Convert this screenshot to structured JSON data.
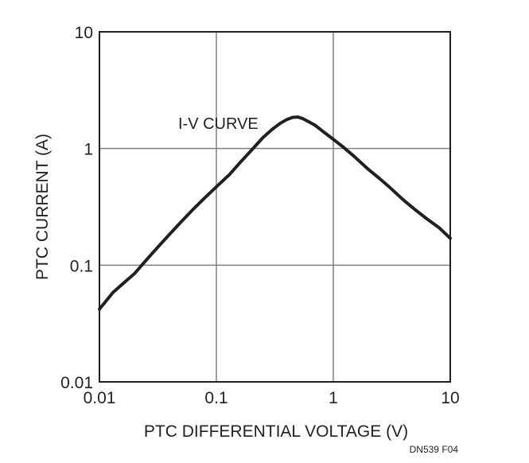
{
  "chart_data": {
    "type": "line",
    "xlabel": "PTC DIFFERENTIAL VOLTAGE (V)",
    "ylabel": "PTC CURRENT (A)",
    "x_scale": "log",
    "y_scale": "log",
    "xlim": [
      0.01,
      10
    ],
    "ylim": [
      0.01,
      10
    ],
    "x_ticks": [
      0.01,
      0.1,
      1,
      10
    ],
    "x_tick_labels": [
      "0.01",
      "0.1",
      "1",
      "10"
    ],
    "y_ticks": [
      0.01,
      0.1,
      1,
      10
    ],
    "y_tick_labels": [
      "0.01",
      "0.1",
      "1",
      "10"
    ],
    "grid": true,
    "annotation": "I-V CURVE",
    "figure_id": "DN539 F04",
    "colors": {
      "curve": "#231f20",
      "grid": "#808080",
      "axes": "#231f20"
    },
    "series": [
      {
        "x": [
          0.01,
          0.013,
          0.016,
          0.02,
          0.025,
          0.032,
          0.04,
          0.05,
          0.063,
          0.08,
          0.1,
          0.13,
          0.16,
          0.2,
          0.25,
          0.3,
          0.35,
          0.4,
          0.45,
          0.5,
          0.55,
          0.6,
          0.7,
          0.8,
          0.9,
          1.0,
          1.2,
          1.5,
          2.0,
          2.5,
          3.0,
          4.0,
          5.0,
          6.3,
          8.0,
          10.0
        ],
        "y": [
          0.042,
          0.058,
          0.07,
          0.085,
          0.11,
          0.145,
          0.185,
          0.235,
          0.3,
          0.38,
          0.47,
          0.6,
          0.76,
          0.97,
          1.24,
          1.46,
          1.64,
          1.77,
          1.85,
          1.86,
          1.8,
          1.72,
          1.58,
          1.42,
          1.3,
          1.2,
          1.04,
          0.86,
          0.66,
          0.55,
          0.47,
          0.36,
          0.3,
          0.25,
          0.21,
          0.17
        ]
      }
    ]
  }
}
